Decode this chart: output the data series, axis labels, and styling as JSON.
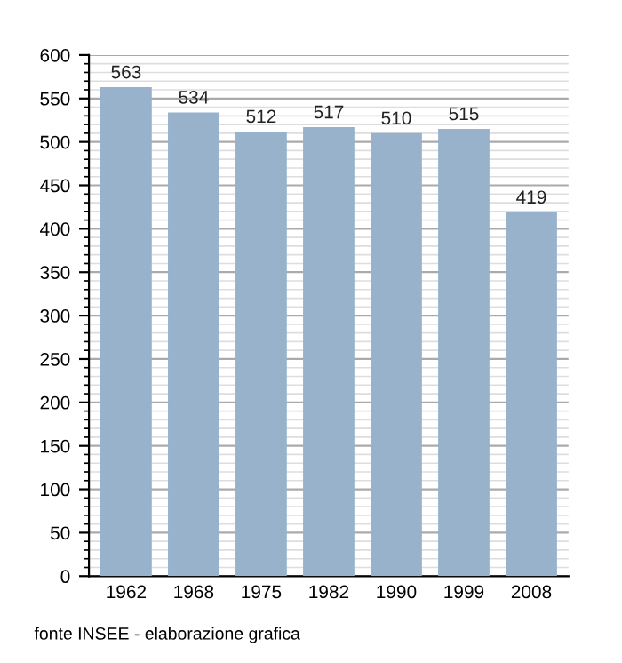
{
  "chart_data": {
    "type": "bar",
    "categories": [
      "1962",
      "1968",
      "1975",
      "1982",
      "1990",
      "1999",
      "2008"
    ],
    "values": [
      563,
      534,
      512,
      517,
      510,
      515,
      419
    ],
    "color": "#98b2cc",
    "ylim": [
      0,
      600
    ],
    "yticks": [
      0,
      50,
      100,
      150,
      200,
      250,
      300,
      350,
      400,
      450,
      500,
      550,
      600
    ],
    "grid": "y",
    "data_labels": true,
    "annotations": [
      "fonte INSEE - elaborazione grafica"
    ]
  }
}
